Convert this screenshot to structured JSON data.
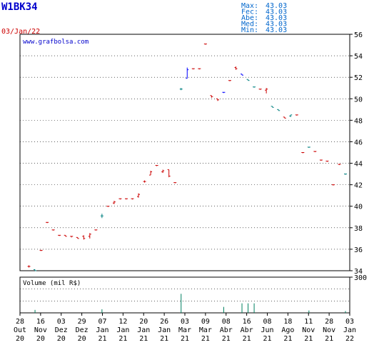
{
  "chart_data": {
    "type": "ohlc",
    "ticker": "W1BK34",
    "date": "03/Jan/22",
    "watermark": "www.grafbolsa.com",
    "stats": [
      {
        "label": "Max:",
        "value": "43.03"
      },
      {
        "label": "Fec:",
        "value": "43.03"
      },
      {
        "label": "Abe:",
        "value": "43.03"
      },
      {
        "label": "Med:",
        "value": "43.03"
      },
      {
        "label": "Min:",
        "value": "43.03"
      }
    ],
    "price_axis": {
      "min": 34,
      "max": 56,
      "ticks": [
        34,
        36,
        38,
        40,
        42,
        44,
        46,
        48,
        50,
        52,
        54,
        56
      ]
    },
    "volume_axis": {
      "label": "Volume (mil R$)",
      "max": 300,
      "ticks": [
        300
      ]
    },
    "x_labels": [
      {
        "day": "28",
        "mon": "Out",
        "yr": "20"
      },
      {
        "day": "16",
        "mon": "Nov",
        "yr": "20"
      },
      {
        "day": "03",
        "mon": "Dez",
        "yr": "20"
      },
      {
        "day": "29",
        "mon": "Dez",
        "yr": "20"
      },
      {
        "day": "07",
        "mon": "Jan",
        "yr": "21"
      },
      {
        "day": "12",
        "mon": "Jan",
        "yr": "21"
      },
      {
        "day": "20",
        "mon": "Jan",
        "yr": "21"
      },
      {
        "day": "26",
        "mon": "Jan",
        "yr": "21"
      },
      {
        "day": "03",
        "mon": "Mar",
        "yr": "21"
      },
      {
        "day": "09",
        "mon": "Mar",
        "yr": "21"
      },
      {
        "day": "08",
        "mon": "Abr",
        "yr": "21"
      },
      {
        "day": "16",
        "mon": "Abr",
        "yr": "21"
      },
      {
        "day": "08",
        "mon": "Jun",
        "yr": "21"
      },
      {
        "day": "18",
        "mon": "Ago",
        "yr": "21"
      },
      {
        "day": "11",
        "mon": "Nov",
        "yr": "21"
      },
      {
        "day": "28",
        "mon": "Nov",
        "yr": "21"
      },
      {
        "day": "03",
        "mon": "Jan",
        "yr": "22"
      }
    ],
    "bars": [
      {
        "i": 1,
        "o": 34.4,
        "h": 34.5,
        "l": 34.3,
        "c": 34.4,
        "v": 0,
        "col": "red"
      },
      {
        "i": 2,
        "o": 34.1,
        "h": 34.1,
        "l": 34.0,
        "c": 34.0,
        "v": 25,
        "col": "teal"
      },
      {
        "i": 3,
        "o": 35.9,
        "h": 35.9,
        "l": 35.9,
        "c": 35.9,
        "v": 0,
        "col": "red"
      },
      {
        "i": 4,
        "o": 38.5,
        "h": 38.5,
        "l": 38.5,
        "c": 38.5,
        "v": 0,
        "col": "red"
      },
      {
        "i": 5,
        "o": 37.8,
        "h": 37.8,
        "l": 37.8,
        "c": 37.8,
        "v": 0,
        "col": "red"
      },
      {
        "i": 6,
        "o": 37.3,
        "h": 37.3,
        "l": 37.3,
        "c": 37.3,
        "v": 0,
        "col": "red"
      },
      {
        "i": 7,
        "o": 37.3,
        "h": 37.3,
        "l": 37.2,
        "c": 37.2,
        "v": 0,
        "col": "red"
      },
      {
        "i": 8,
        "o": 37.2,
        "h": 37.2,
        "l": 37.1,
        "c": 37.2,
        "v": 0,
        "col": "red"
      },
      {
        "i": 9,
        "o": 37.1,
        "h": 37.1,
        "l": 37.0,
        "c": 37.0,
        "v": 0,
        "col": "red"
      },
      {
        "i": 10,
        "o": 37.2,
        "h": 37.3,
        "l": 36.9,
        "c": 37.0,
        "v": 0,
        "col": "red"
      },
      {
        "i": 11,
        "o": 37.2,
        "h": 37.5,
        "l": 37.0,
        "c": 37.4,
        "v": 0,
        "col": "red"
      },
      {
        "i": 12,
        "o": 37.8,
        "h": 37.8,
        "l": 37.8,
        "c": 37.8,
        "v": 0,
        "col": "red"
      },
      {
        "i": 13,
        "o": 39.1,
        "h": 39.3,
        "l": 38.9,
        "c": 39.1,
        "v": 30,
        "col": "teal"
      },
      {
        "i": 14,
        "o": 40.0,
        "h": 40.0,
        "l": 40.0,
        "c": 40.0,
        "v": 0,
        "col": "red"
      },
      {
        "i": 15,
        "o": 40.3,
        "h": 40.5,
        "l": 40.2,
        "c": 40.4,
        "v": 0,
        "col": "red"
      },
      {
        "i": 16,
        "o": 40.7,
        "h": 40.7,
        "l": 40.7,
        "c": 40.7,
        "v": 0,
        "col": "red"
      },
      {
        "i": 17,
        "o": 40.7,
        "h": 40.7,
        "l": 40.7,
        "c": 40.7,
        "v": 0,
        "col": "red"
      },
      {
        "i": 18,
        "o": 40.7,
        "h": 40.7,
        "l": 40.7,
        "c": 40.7,
        "v": 0,
        "col": "red"
      },
      {
        "i": 19,
        "o": 40.9,
        "h": 41.2,
        "l": 40.8,
        "c": 41.1,
        "v": 0,
        "col": "red"
      },
      {
        "i": 20,
        "o": 42.3,
        "h": 42.4,
        "l": 42.2,
        "c": 42.3,
        "v": 0,
        "col": "red"
      },
      {
        "i": 21,
        "o": 42.9,
        "h": 43.3,
        "l": 42.9,
        "c": 43.2,
        "v": 0,
        "col": "red"
      },
      {
        "i": 22,
        "o": 43.8,
        "h": 43.8,
        "l": 43.8,
        "c": 43.8,
        "v": 0,
        "col": "red"
      },
      {
        "i": 23,
        "o": 43.2,
        "h": 43.4,
        "l": 43.1,
        "c": 43.3,
        "v": 0,
        "col": "red"
      },
      {
        "i": 24,
        "o": 43.4,
        "h": 43.4,
        "l": 42.7,
        "c": 42.8,
        "v": 0,
        "col": "red"
      },
      {
        "i": 25,
        "o": 42.2,
        "h": 42.2,
        "l": 42.2,
        "c": 42.2,
        "v": 0,
        "col": "red"
      },
      {
        "i": 26,
        "o": 50.9,
        "h": 51.0,
        "l": 50.8,
        "c": 50.9,
        "v": 160,
        "col": "teal"
      },
      {
        "i": 27,
        "o": 51.9,
        "h": 52.9,
        "l": 51.9,
        "c": 52.7,
        "v": 0,
        "col": "blue"
      },
      {
        "i": 28,
        "o": 52.8,
        "h": 52.8,
        "l": 52.8,
        "c": 52.8,
        "v": 0,
        "col": "red"
      },
      {
        "i": 29,
        "o": 52.8,
        "h": 52.8,
        "l": 52.8,
        "c": 52.8,
        "v": 0,
        "col": "red"
      },
      {
        "i": 30,
        "o": 55.1,
        "h": 55.1,
        "l": 55.1,
        "c": 55.1,
        "v": 0,
        "col": "red"
      },
      {
        "i": 31,
        "o": 50.3,
        "h": 50.3,
        "l": 50.1,
        "c": 50.2,
        "v": 0,
        "col": "red"
      },
      {
        "i": 32,
        "o": 50.0,
        "h": 50.0,
        "l": 49.8,
        "c": 49.9,
        "v": 0,
        "col": "red"
      },
      {
        "i": 33,
        "o": 50.6,
        "h": 50.6,
        "l": 50.6,
        "c": 50.6,
        "v": 50,
        "col": "blue"
      },
      {
        "i": 34,
        "o": 51.7,
        "h": 51.7,
        "l": 51.7,
        "c": 51.7,
        "v": 0,
        "col": "red"
      },
      {
        "i": 35,
        "o": 52.9,
        "h": 53.0,
        "l": 52.7,
        "c": 52.8,
        "v": 0,
        "col": "red"
      },
      {
        "i": 36,
        "o": 52.3,
        "h": 52.3,
        "l": 52.2,
        "c": 52.2,
        "v": 80,
        "col": "blue"
      },
      {
        "i": 37,
        "o": 51.8,
        "h": 51.8,
        "l": 51.7,
        "c": 51.7,
        "v": 80,
        "col": "teal"
      },
      {
        "i": 38,
        "o": 51.1,
        "h": 51.1,
        "l": 51.1,
        "c": 51.1,
        "v": 80,
        "col": "teal"
      },
      {
        "i": 39,
        "o": 50.9,
        "h": 50.9,
        "l": 50.9,
        "c": 50.9,
        "v": 0,
        "col": "red"
      },
      {
        "i": 40,
        "o": 50.8,
        "h": 51.0,
        "l": 50.5,
        "c": 50.9,
        "v": 0,
        "col": "red"
      },
      {
        "i": 41,
        "o": 49.3,
        "h": 49.3,
        "l": 49.2,
        "c": 49.2,
        "v": 0,
        "col": "teal"
      },
      {
        "i": 42,
        "o": 49.0,
        "h": 49.0,
        "l": 48.9,
        "c": 48.9,
        "v": 0,
        "col": "teal"
      },
      {
        "i": 43,
        "o": 48.3,
        "h": 48.3,
        "l": 48.2,
        "c": 48.2,
        "v": 0,
        "col": "red"
      },
      {
        "i": 44,
        "o": 48.4,
        "h": 48.5,
        "l": 48.3,
        "c": 48.5,
        "v": 0,
        "col": "teal"
      },
      {
        "i": 45,
        "o": 48.5,
        "h": 48.5,
        "l": 48.5,
        "c": 48.5,
        "v": 0,
        "col": "red"
      },
      {
        "i": 46,
        "o": 45.0,
        "h": 45.0,
        "l": 45.0,
        "c": 45.0,
        "v": 0,
        "col": "red"
      },
      {
        "i": 47,
        "o": 45.5,
        "h": 45.5,
        "l": 45.5,
        "c": 45.5,
        "v": 20,
        "col": "teal"
      },
      {
        "i": 48,
        "o": 45.1,
        "h": 45.1,
        "l": 45.1,
        "c": 45.1,
        "v": 0,
        "col": "red"
      },
      {
        "i": 49,
        "o": 44.3,
        "h": 44.3,
        "l": 44.3,
        "c": 44.3,
        "v": 0,
        "col": "red"
      },
      {
        "i": 50,
        "o": 44.2,
        "h": 44.2,
        "l": 44.2,
        "c": 44.2,
        "v": 0,
        "col": "red"
      },
      {
        "i": 51,
        "o": 42.0,
        "h": 42.0,
        "l": 42.0,
        "c": 42.0,
        "v": 0,
        "col": "red"
      },
      {
        "i": 52,
        "o": 43.9,
        "h": 43.9,
        "l": 43.9,
        "c": 43.9,
        "v": 0,
        "col": "red"
      },
      {
        "i": 53,
        "o": 43.0,
        "h": 43.0,
        "l": 43.0,
        "c": 43.0,
        "v": 15,
        "col": "teal"
      }
    ],
    "colors": {
      "ticker": "#0000cc",
      "date": "#cc0000",
      "stats": "#0066cc",
      "watermark": "#0000cc",
      "axis": "#000000",
      "grid": "#000000",
      "up": "#cc0000",
      "down": "#008080",
      "blue": "#0000ff",
      "volume": "#008060"
    }
  }
}
